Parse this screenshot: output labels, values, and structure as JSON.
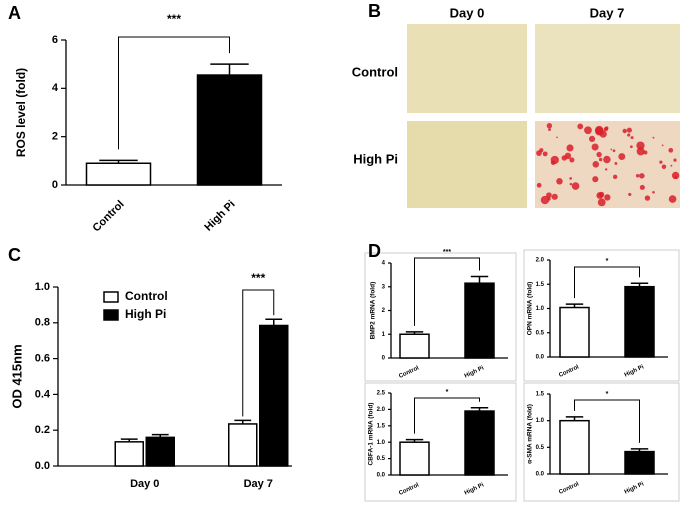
{
  "panel_labels": [
    "A",
    "B",
    "C",
    "D"
  ],
  "image_panel": {
    "columns": [
      "Day 0",
      "Day 7"
    ],
    "rows": [
      "Control",
      "High Pi"
    ]
  },
  "chart_data": [
    {
      "type": "bar",
      "ylabel": "ROS level (fold)",
      "categories": [
        "Control",
        "High Pi"
      ],
      "values": [
        0.9,
        4.55
      ],
      "errors": [
        0.12,
        0.45
      ],
      "colors": [
        "#ffffff",
        "#000000"
      ],
      "ylim": [
        0,
        6
      ],
      "yticks": [
        0,
        2,
        4,
        6
      ],
      "annotation": "***"
    },
    {
      "type": "grouped_bar",
      "ylabel": "OD 415nm",
      "categories": [
        "Day 0",
        "Day 7"
      ],
      "series": [
        {
          "name": "Control",
          "color": "#ffffff",
          "values": [
            0.135,
            0.235
          ],
          "errors": [
            0.015,
            0.02
          ]
        },
        {
          "name": "High Pi",
          "color": "#000000",
          "values": [
            0.16,
            0.785
          ],
          "errors": [
            0.015,
            0.035
          ]
        }
      ],
      "ylim": [
        0,
        1.0
      ],
      "yticks": [
        {
          "value": 0,
          "label": "0.0"
        },
        0.2,
        0.4,
        0.6,
        0.8,
        {
          "value": 1.0,
          "label": "1.0"
        }
      ],
      "annotation": "***"
    },
    {
      "type": "bar",
      "ylabel": "BMP2 mRNA (fold)",
      "categories": [
        "Control",
        "High Pi"
      ],
      "values": [
        1.0,
        3.15
      ],
      "errors": [
        0.1,
        0.28
      ],
      "colors": [
        "#ffffff",
        "#000000"
      ],
      "ylim": [
        0,
        4
      ],
      "yticks": [
        0,
        1,
        2,
        3,
        4
      ],
      "annotation": "***"
    },
    {
      "type": "bar",
      "ylabel": "OPN mRNA (fold)",
      "categories": [
        "Control",
        "High Pi"
      ],
      "values": [
        1.02,
        1.45
      ],
      "errors": [
        0.07,
        0.07
      ],
      "colors": [
        "#ffffff",
        "#000000"
      ],
      "ylim": [
        0,
        2.0
      ],
      "yticks": [
        {
          "value": 0,
          "label": "0.0"
        },
        0.5,
        {
          "value": 1.0,
          "label": "1.0"
        },
        1.5,
        {
          "value": 2.0,
          "label": "2.0"
        }
      ],
      "annotation": "*"
    },
    {
      "type": "bar",
      "ylabel": "CBFA-1 mRNA (fold)",
      "categories": [
        "Control",
        "High Pi"
      ],
      "values": [
        1.0,
        1.95
      ],
      "errors": [
        0.08,
        0.1
      ],
      "colors": [
        "#ffffff",
        "#000000"
      ],
      "ylim": [
        0,
        2.5
      ],
      "yticks": [
        {
          "value": 0,
          "label": "0.0"
        },
        0.5,
        {
          "value": 1.0,
          "label": "1.0"
        },
        1.5,
        {
          "value": 2.0,
          "label": "2.0"
        },
        2.5
      ],
      "annotation": "*"
    },
    {
      "type": "bar",
      "ylabel": "α-SMA mRNA (fold)",
      "categories": [
        "Control",
        "High Pi"
      ],
      "values": [
        1.0,
        0.42
      ],
      "errors": [
        0.07,
        0.05
      ],
      "colors": [
        "#ffffff",
        "#000000"
      ],
      "ylim": [
        0,
        1.5
      ],
      "yticks": [
        {
          "value": 0,
          "label": "0.0"
        },
        0.5,
        {
          "value": 1.0,
          "label": "1.0"
        },
        1.5
      ],
      "annotation": "*"
    }
  ]
}
